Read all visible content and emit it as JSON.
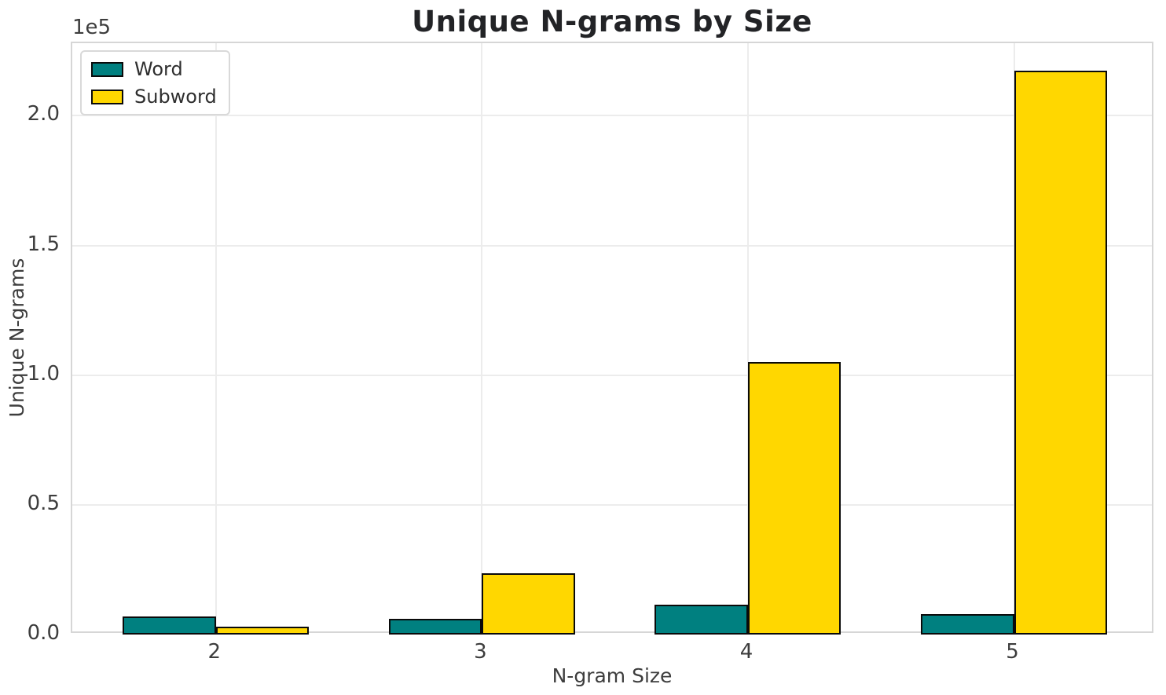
{
  "chart_data": {
    "type": "bar",
    "title": "Unique N-grams by Size",
    "xlabel": "N-gram Size",
    "ylabel": "Unique N-grams",
    "y_scale_offset_label": "1e5",
    "categories": [
      "2",
      "3",
      "4",
      "5"
    ],
    "series": [
      {
        "name": "Word",
        "color": "#008080",
        "values": [
          7000,
          6000,
          11500,
          8000
        ]
      },
      {
        "name": "Subword",
        "color": "#ffd700",
        "values": [
          3000,
          23500,
          105000,
          217500
        ]
      }
    ],
    "bar_edge_color": "#0a0a0a",
    "bar_width": 0.35,
    "xlim": [
      -0.54,
      3.53
    ],
    "ylim": [
      0,
      228000
    ],
    "yticks": [
      {
        "value": 0,
        "label": "0.0"
      },
      {
        "value": 50000,
        "label": "0.5"
      },
      {
        "value": 100000,
        "label": "1.0"
      },
      {
        "value": 150000,
        "label": "1.5"
      },
      {
        "value": 200000,
        "label": "2.0"
      }
    ],
    "grid": true,
    "legend_position": "upper left",
    "legend_items": [
      "Word",
      "Subword"
    ]
  },
  "colors": {
    "grid": "#ececec",
    "spine": "#d6d6d6",
    "tick_text": "#3d3d3d",
    "title_text": "#222326"
  }
}
